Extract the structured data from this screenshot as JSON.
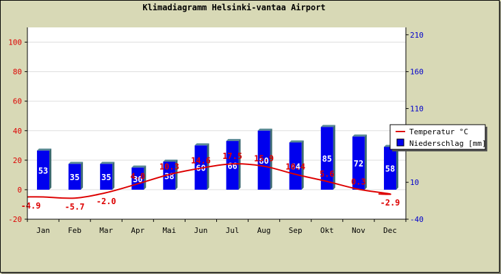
{
  "chart_data": {
    "type": "bar+line",
    "title": "Klimadiagramm Helsinki-vantaa Airport",
    "categories": [
      "Jan",
      "Feb",
      "Mar",
      "Apr",
      "Mai",
      "Jun",
      "Jul",
      "Aug",
      "Sep",
      "Okt",
      "Nov",
      "Dec"
    ],
    "series": [
      {
        "name": "Temperatur °C",
        "type": "line",
        "axis": "left",
        "color": "#dd0000",
        "values": [
          -4.9,
          -5.7,
          -2.0,
          4.0,
          10.3,
          14.6,
          17.5,
          15.9,
          10.4,
          5.6,
          0.3,
          -2.9
        ],
        "labels": [
          "-4.9",
          "-5.7",
          "-2.0",
          "4.0",
          "10.3",
          "14.6",
          "17.5",
          "15.9",
          "10.4",
          "5.6",
          "0.3",
          "-2.9"
        ]
      },
      {
        "name": "Niederschlag [mm]",
        "type": "bar",
        "axis": "right",
        "color": "#0000ee",
        "values": [
          53,
          35,
          35,
          30,
          38,
          60,
          66,
          80,
          64,
          85,
          72,
          58
        ],
        "labels": [
          "53",
          "35",
          "35",
          "30",
          "38",
          "60",
          "66",
          "80",
          "64",
          "85",
          "72",
          "58"
        ]
      }
    ],
    "left_axis": {
      "ylim": [
        -20,
        110
      ],
      "ticks": [
        -20,
        0,
        20,
        40,
        60,
        80,
        100
      ],
      "color": "#dd0000"
    },
    "right_axis": {
      "ylim": [
        -40,
        220
      ],
      "ticks": [
        -40,
        10,
        60,
        110,
        160,
        210
      ],
      "color": "#0000cc"
    },
    "grid": true,
    "legend_position": "right"
  }
}
